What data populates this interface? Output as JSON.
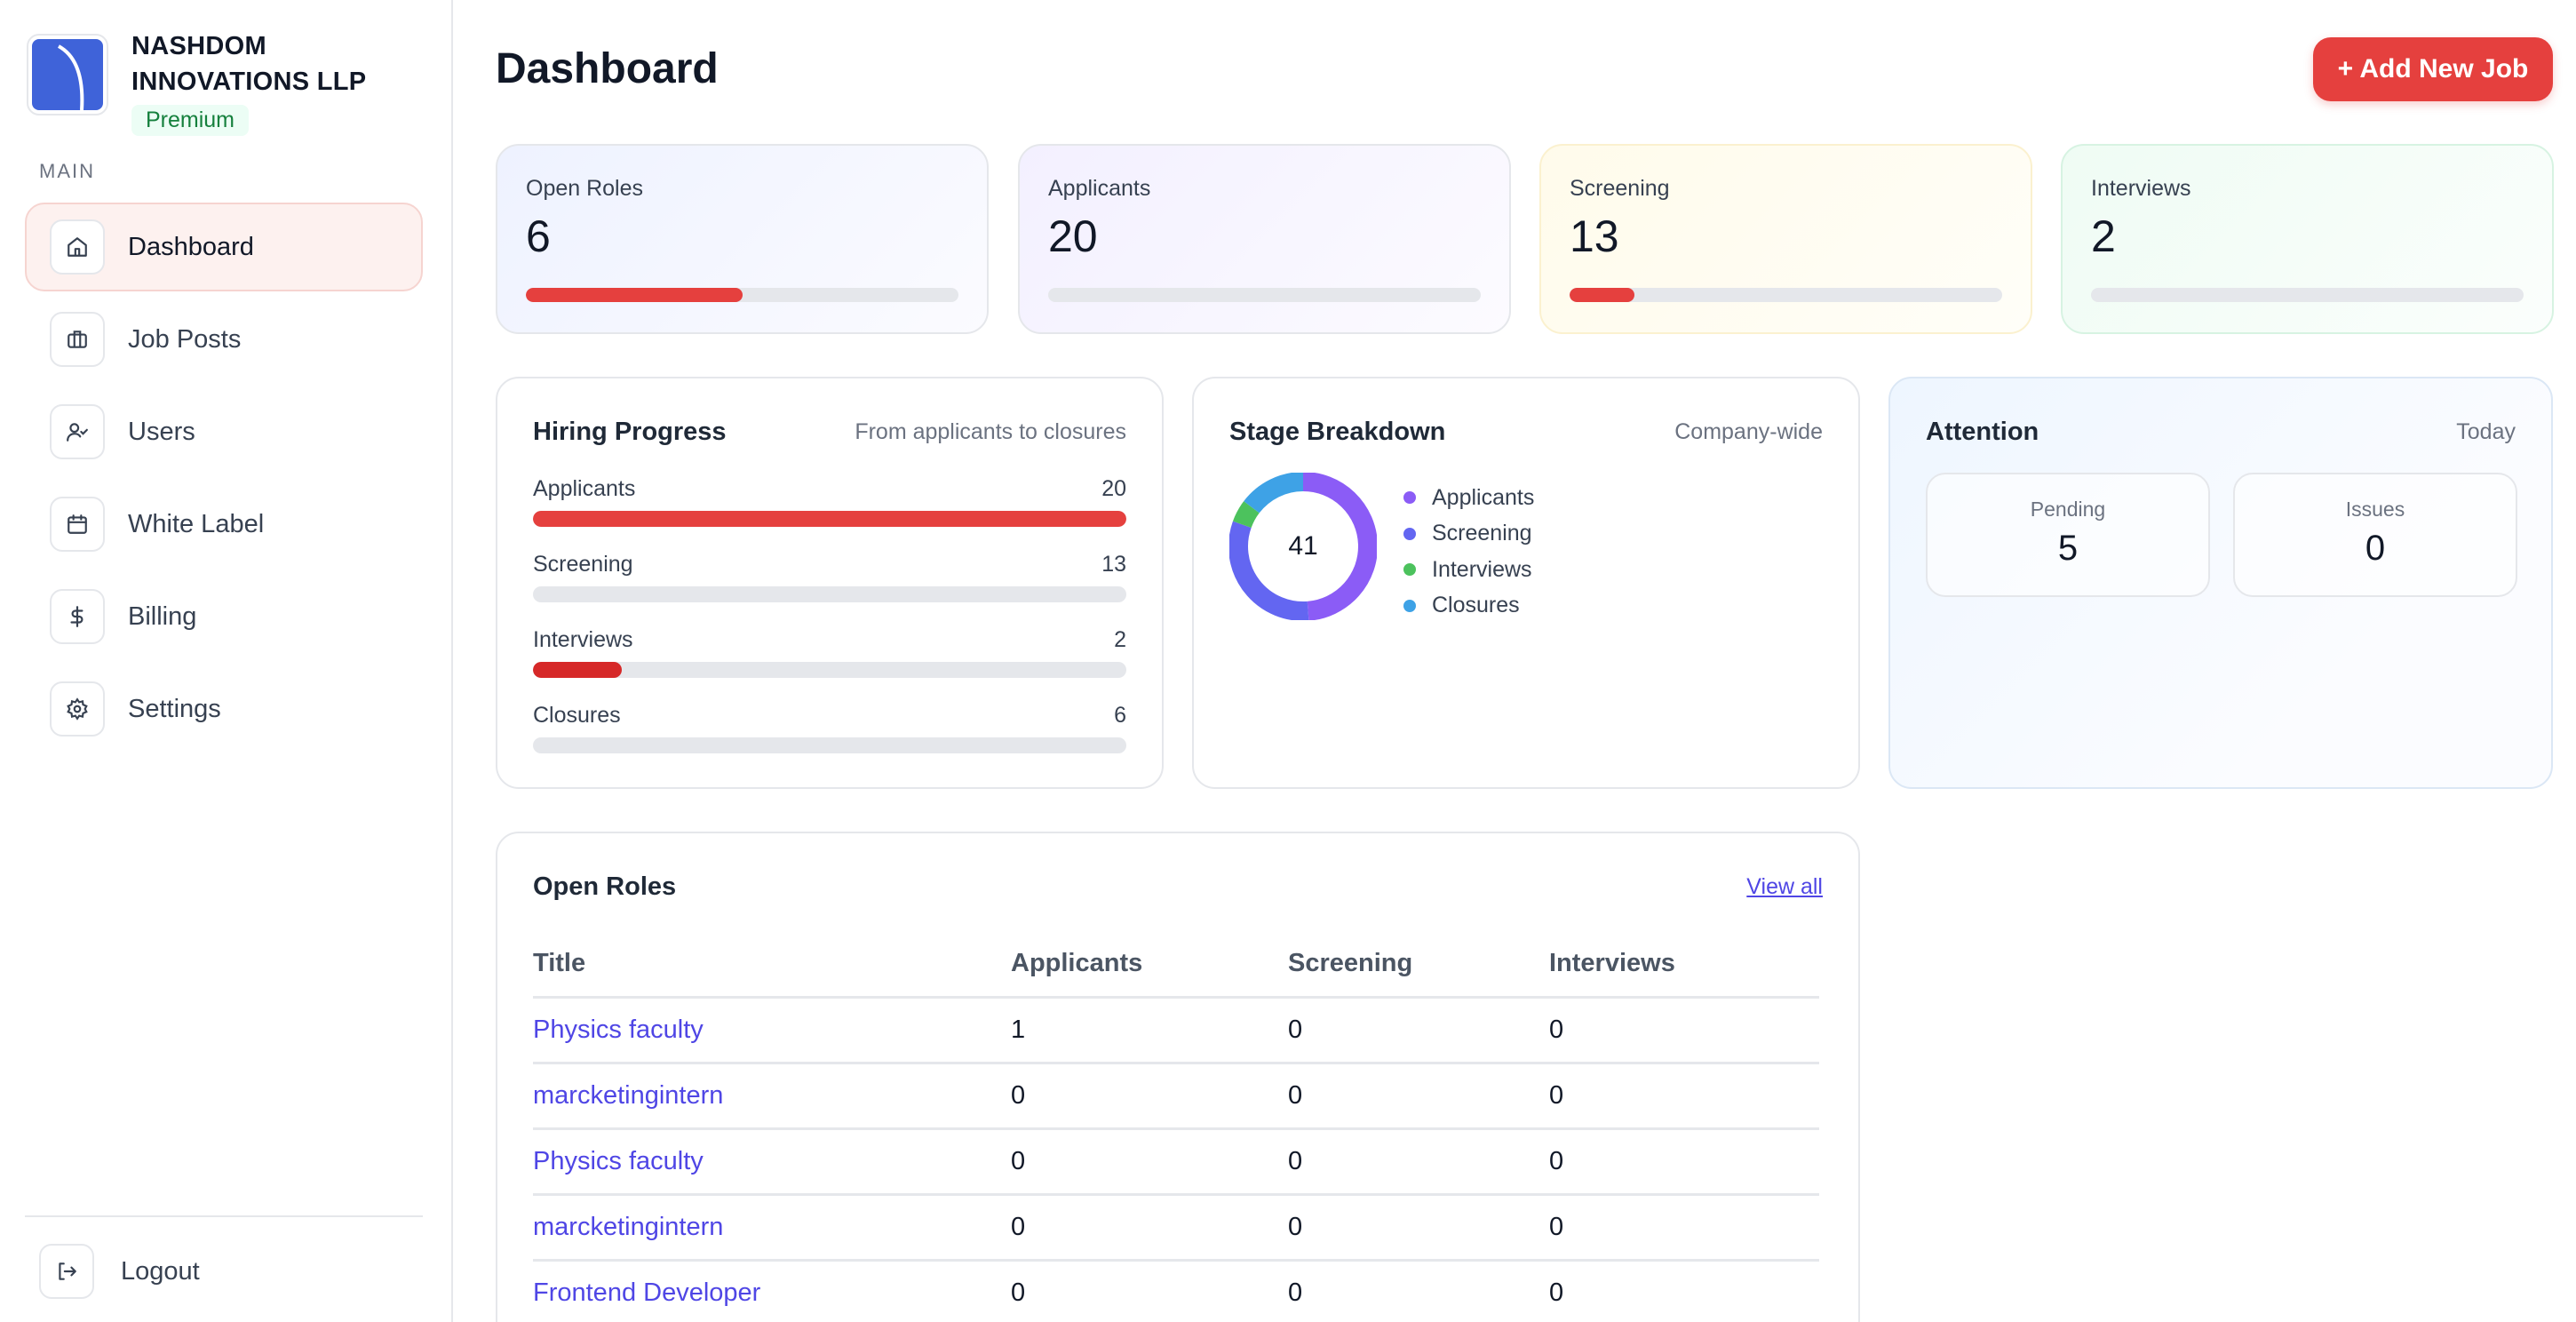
{
  "company": {
    "name_line1": "NASHDOM",
    "name_line2": "INNOVATIONS LLP",
    "badge": "Premium"
  },
  "sidebar": {
    "section_label": "MAIN",
    "items": [
      {
        "label": "Dashboard",
        "icon": "home-icon",
        "active": true
      },
      {
        "label": "Job Posts",
        "icon": "briefcase-icon"
      },
      {
        "label": "Users",
        "icon": "user-check-icon"
      },
      {
        "label": "White Label",
        "icon": "calendar-icon"
      },
      {
        "label": "Billing",
        "icon": "dollar-icon"
      },
      {
        "label": "Settings",
        "icon": "gear-icon"
      }
    ],
    "logout": "Logout"
  },
  "header": {
    "title": "Dashboard",
    "add_button": "+ Add New Job"
  },
  "stats": [
    {
      "label": "Open Roles",
      "value": "6",
      "progress": 0.5
    },
    {
      "label": "Applicants",
      "value": "20",
      "progress": 0
    },
    {
      "label": "Screening",
      "value": "13",
      "progress": 0.15
    },
    {
      "label": "Interviews",
      "value": "2",
      "progress": 0
    }
  ],
  "hiring_progress": {
    "title": "Hiring Progress",
    "subtitle": "From applicants to closures",
    "rows": [
      {
        "label": "Applicants",
        "value": "20",
        "fill": 1.0,
        "color": "#e5403e"
      },
      {
        "label": "Screening",
        "value": "13",
        "fill": 0,
        "color": "#e5403e"
      },
      {
        "label": "Interviews",
        "value": "2",
        "fill": 0.15,
        "color": "#d62828"
      },
      {
        "label": "Closures",
        "value": "6",
        "fill": 0,
        "color": "#e5403e"
      }
    ]
  },
  "stage_breakdown": {
    "title": "Stage Breakdown",
    "subtitle": "Company-wide",
    "total": "41",
    "legend": [
      {
        "label": "Applicants",
        "color": "#8b5cf6"
      },
      {
        "label": "Screening",
        "color": "#6366f1"
      },
      {
        "label": "Interviews",
        "color": "#4cc25d"
      },
      {
        "label": "Closures",
        "color": "#3ea2e6"
      }
    ]
  },
  "chart_data": {
    "type": "pie",
    "categories": [
      "Applicants",
      "Screening",
      "Interviews",
      "Closures"
    ],
    "values": [
      20,
      13,
      2,
      6
    ],
    "title": "Stage Breakdown"
  },
  "attention": {
    "title": "Attention",
    "subtitle": "Today",
    "pending_label": "Pending",
    "pending_value": "5",
    "issues_label": "Issues",
    "issues_value": "0"
  },
  "open_roles": {
    "title": "Open Roles",
    "view_all": "View all",
    "columns": [
      "Title",
      "Applicants",
      "Screening",
      "Interviews"
    ],
    "rows": [
      [
        "Physics faculty",
        "1",
        "0",
        "0"
      ],
      [
        "marcketingintern",
        "0",
        "0",
        "0"
      ],
      [
        "Physics faculty",
        "0",
        "0",
        "0"
      ],
      [
        "marcketingintern",
        "0",
        "0",
        "0"
      ],
      [
        "Frontend Developer",
        "0",
        "0",
        "0"
      ]
    ]
  }
}
